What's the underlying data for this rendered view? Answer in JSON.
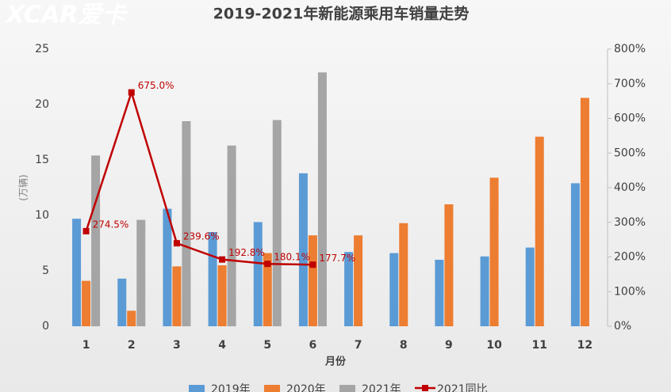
{
  "chart_data": {
    "type": "bar",
    "title": "2019-2021年新能源乘用车销量走势",
    "watermark": "XCAR爱卡",
    "y_label": "(万辆)",
    "x_label": "月份",
    "categories": [
      "1",
      "2",
      "3",
      "4",
      "5",
      "6",
      "7",
      "8",
      "9",
      "10",
      "11",
      "12"
    ],
    "ylim": [
      0,
      25
    ],
    "yticks": [
      0,
      5,
      10,
      15,
      20,
      25
    ],
    "y2lim": [
      0,
      800
    ],
    "y2ticks": [
      {
        "value": 0,
        "label": "0%"
      },
      {
        "value": 100,
        "label": "100%"
      },
      {
        "value": 200,
        "label": "200%"
      },
      {
        "value": 300,
        "label": "300%"
      },
      {
        "value": 400,
        "label": "400%"
      },
      {
        "value": 500,
        "label": "500%"
      },
      {
        "value": 600,
        "label": "600%"
      },
      {
        "value": 700,
        "label": "700%"
      },
      {
        "value": 800,
        "label": "800%"
      }
    ],
    "series": [
      {
        "name": "2019年",
        "color": "#5b9bd5",
        "values": [
          9.7,
          4.3,
          10.6,
          8.5,
          9.4,
          13.8,
          6.7,
          6.6,
          6.0,
          6.3,
          7.1,
          12.9
        ]
      },
      {
        "name": "2020年",
        "color": "#ed7d31",
        "values": [
          4.1,
          1.4,
          5.4,
          5.5,
          6.6,
          8.2,
          8.2,
          9.3,
          11.0,
          13.4,
          17.1,
          20.6
        ]
      },
      {
        "name": "2021年",
        "color": "#a5a5a5",
        "values": [
          15.4,
          9.6,
          18.5,
          16.3,
          18.6,
          22.9,
          null,
          null,
          null,
          null,
          null,
          null
        ]
      },
      {
        "name": "2021同比",
        "color": "#c00000",
        "type": "line",
        "axis": "y2",
        "values": [
          274.5,
          675.0,
          239.6,
          192.8,
          180.1,
          177.7,
          null,
          null,
          null,
          null,
          null,
          null
        ],
        "value_labels": [
          "274.5%",
          "675.0%",
          "239.6%",
          "192.8%",
          "180.1%",
          "177.7%",
          null,
          null,
          null,
          null,
          null,
          null
        ]
      }
    ]
  }
}
